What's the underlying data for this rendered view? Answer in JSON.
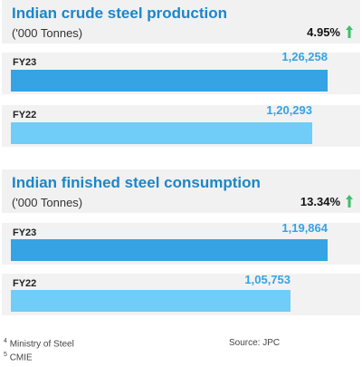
{
  "colors": {
    "title": "#1a87c9",
    "bar_fy23": "#35a3e4",
    "bar_fy22": "#6fcdf7",
    "growth_arrow": "#3fbf6a",
    "value_text": "#35a3e4"
  },
  "chart_data": [
    {
      "type": "bar",
      "orientation": "horizontal",
      "title": "Indian crude steel production",
      "subtitle": "('000 Tonnes)",
      "growth_label": "4.95%",
      "growth_icon": "up-arrow-icon",
      "categories": [
        "FY23",
        "FY22"
      ],
      "values": [
        126258,
        120293
      ],
      "value_labels": [
        "1,26,258",
        "1,20,293"
      ]
    },
    {
      "type": "bar",
      "orientation": "horizontal",
      "title": "Indian finished steel consumption",
      "subtitle": "('000 Tonnes)",
      "growth_label": "13.34%",
      "growth_icon": "up-arrow-icon",
      "categories": [
        "FY23",
        "FY22"
      ],
      "values": [
        119864,
        105753
      ],
      "value_labels": [
        "1,19,864",
        "1,05,753"
      ]
    }
  ],
  "footnotes": [
    {
      "mark": "4",
      "text": "Ministry of Steel"
    },
    {
      "mark": "5",
      "text": "CMIE"
    }
  ],
  "source": "Source: JPC"
}
